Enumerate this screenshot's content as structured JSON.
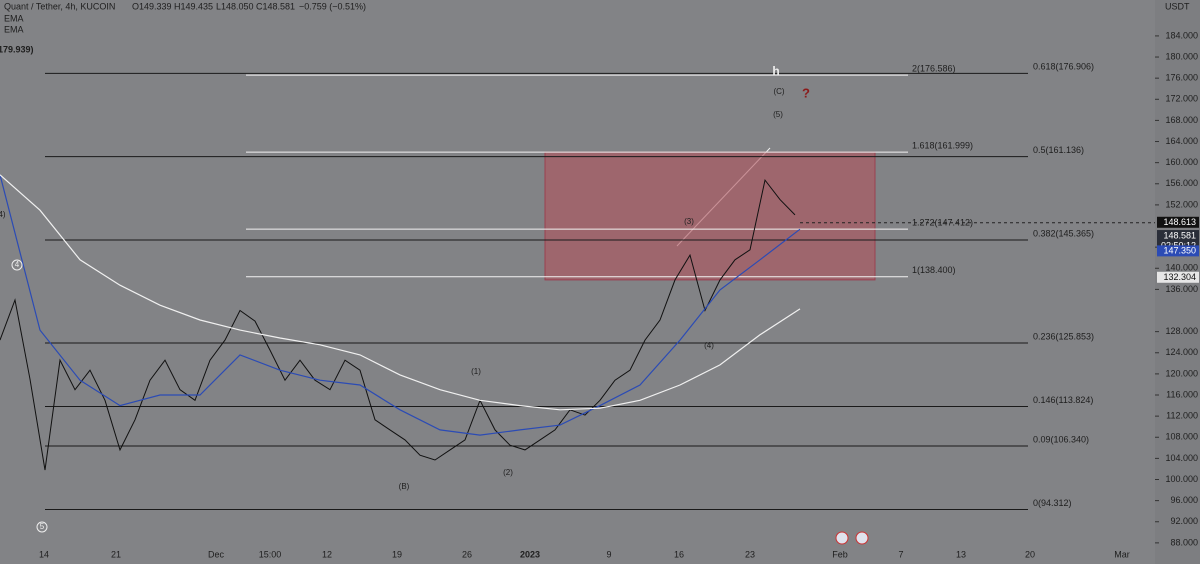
{
  "chart_data": {
    "type": "line",
    "header": {
      "symbol": "Quant / Tether, 4h, KUCOIN",
      "ohlc": [
        "O149.339",
        "H149.435",
        "L148.050",
        "C148.581",
        "−0.759 (−0.51%)"
      ],
      "indicators": [
        "EMA",
        "EMA"
      ],
      "clipped_label": "179.939)"
    },
    "unit": "USDT",
    "ylim": [
      84.0,
      190.8
    ],
    "yticks": [
      {
        "value": 184,
        "label": "184.000"
      },
      {
        "value": 180,
        "label": "180.000"
      },
      {
        "value": 176,
        "label": "176.000"
      },
      {
        "value": 172,
        "label": "172.000"
      },
      {
        "value": 168,
        "label": "168.000"
      },
      {
        "value": 164,
        "label": "164.000"
      },
      {
        "value": 160,
        "label": "160.000"
      },
      {
        "value": 156,
        "label": "156.000"
      },
      {
        "value": 152,
        "label": "152.000"
      },
      {
        "value": 144,
        "label": "144.000"
      },
      {
        "value": 140,
        "label": "140.000"
      },
      {
        "value": 136,
        "label": "136.000"
      },
      {
        "value": 128,
        "label": "128.000"
      },
      {
        "value": 124,
        "label": "124.000"
      },
      {
        "value": 120,
        "label": "120.000"
      },
      {
        "value": 116,
        "label": "116.000"
      },
      {
        "value": 112,
        "label": "112.000"
      },
      {
        "value": 108,
        "label": "108.000"
      },
      {
        "value": 104,
        "label": "104.000"
      },
      {
        "value": 100,
        "label": "100.000"
      },
      {
        "value": 96,
        "label": "96.000"
      },
      {
        "value": 92,
        "label": "92.000"
      },
      {
        "value": 88,
        "label": "88.000"
      }
    ],
    "badges": [
      {
        "value": 148.613,
        "label": "148.613",
        "color": "#111111"
      },
      {
        "value": 146.1,
        "label": "148.581",
        "sub": "02:50:12",
        "color": "#2a2e39"
      },
      {
        "value": 143.2,
        "label": "147.350",
        "color": "#2b4bb5"
      },
      {
        "value": 138.2,
        "label": "132.304",
        "color": "#e6e6e6"
      }
    ],
    "time_labels": [
      "14",
      "21",
      "Dec",
      "15:00",
      "12",
      "19",
      "26",
      "2023",
      "9",
      "16",
      "23",
      "Feb",
      "7",
      "13",
      "20",
      "Mar"
    ],
    "fib_left": [
      {
        "label": "0.618(176.906)",
        "value": 176.906
      },
      {
        "label": "0.5(161.136)",
        "value": 161.136
      },
      {
        "label": "0.382(145.365)",
        "value": 145.365
      },
      {
        "label": "0.236(125.853)",
        "value": 125.853
      },
      {
        "label": "0.146(113.824)",
        "value": 113.824
      },
      {
        "label": "0.09(106.340)",
        "value": 106.34
      },
      {
        "label": "0(94.312)",
        "value": 94.312
      }
    ],
    "fib_right": [
      {
        "label": "2(176.586)",
        "value": 176.586
      },
      {
        "label": "1.618(161.999)",
        "value": 161.999
      },
      {
        "label": "1.272(147.412)",
        "value": 147.412
      },
      {
        "label": "1(138.400)",
        "value": 138.4
      }
    ],
    "zone": [
      162.0,
      137.8
    ],
    "waves": [
      "(1)",
      "(B)",
      "(2)",
      "(3)",
      "(4)",
      "(5)",
      "(C)",
      "h",
      "?",
      "4",
      "5",
      "4)"
    ],
    "series": [
      {
        "name": "price",
        "color": "#111111",
        "values": [
          126.4,
          134,
          119,
          101.8,
          122.6,
          117,
          120.7,
          115,
          105.6,
          111.3,
          118.8,
          122.6,
          117,
          115,
          122.6,
          126.4,
          132,
          130,
          124.5,
          118.8,
          122.6,
          118.8,
          117,
          122.6,
          120.7,
          111.3,
          109.4,
          107.5,
          104.6,
          103.7,
          105.6,
          107.5,
          115,
          109.4,
          106.5,
          105.6,
          107.5,
          109.4,
          113.2,
          112.2,
          115,
          118.8,
          120.7,
          126.4,
          130.2,
          137.8,
          142.5,
          132,
          137.8,
          141.6,
          143.5,
          156.7,
          153,
          150.1
        ]
      },
      {
        "name": "ema_fast",
        "color": "#2b4bb5",
        "values": [
          157.7,
          128.3,
          118.8,
          114,
          116,
          116,
          123.6,
          120.7,
          118.8,
          117.9,
          113.2,
          109.4,
          108.4,
          109.4,
          110.3,
          114,
          117.9,
          126.4,
          135.9,
          141.6,
          147.4
        ]
      },
      {
        "name": "ema_slow",
        "color": "#f0f0f0",
        "values": [
          157.7,
          151,
          141.6,
          136.8,
          133,
          130.2,
          128.3,
          126.8,
          125.5,
          123.6,
          119.8,
          117,
          115,
          114,
          113.2,
          113.5,
          115,
          117.9,
          121.7,
          127.4,
          132.3
        ]
      }
    ]
  }
}
